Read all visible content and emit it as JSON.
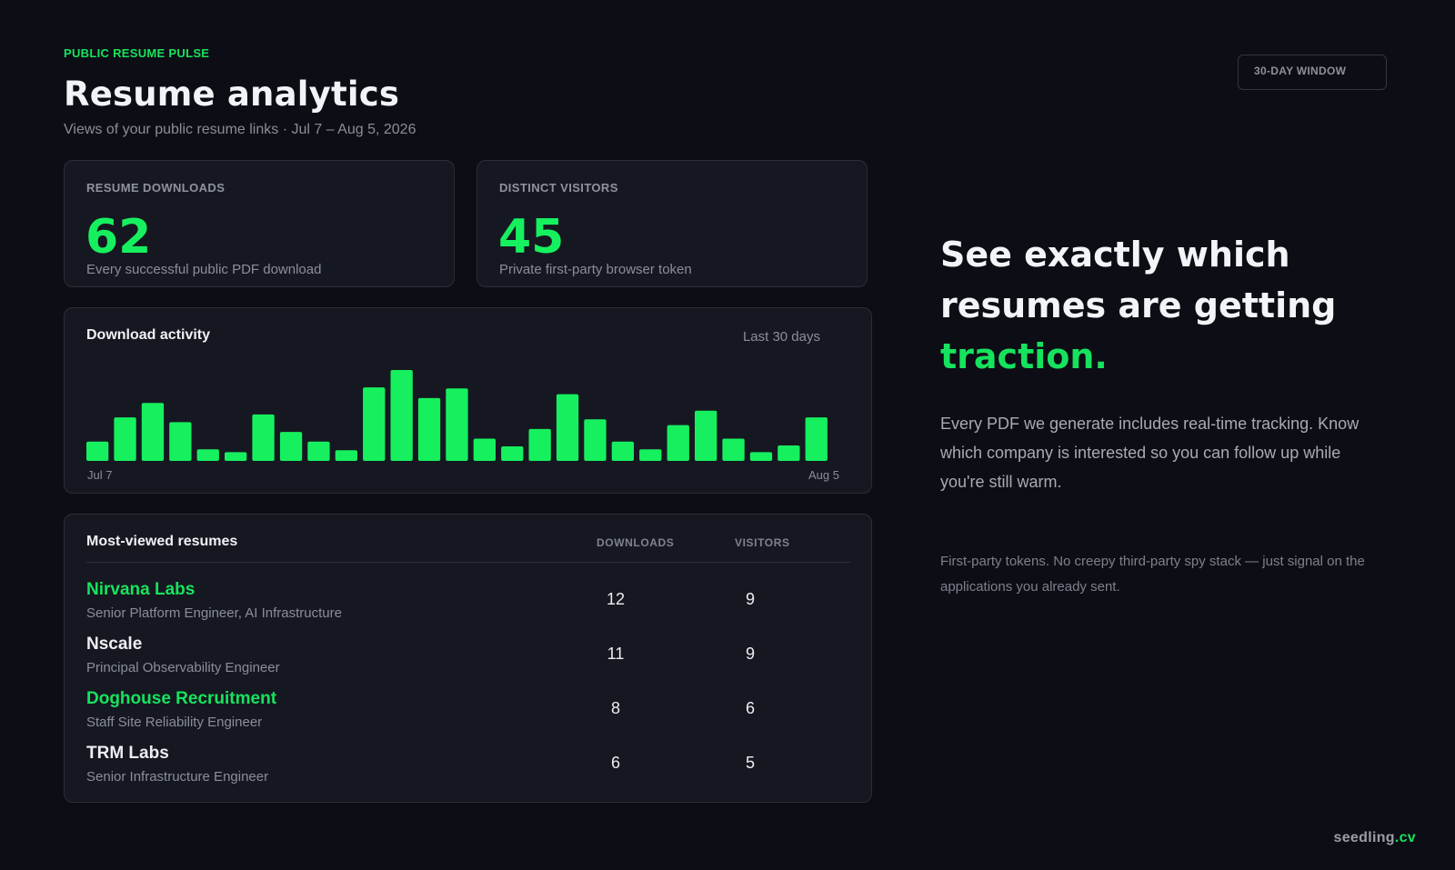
{
  "header": {
    "eyebrow": "PUBLIC RESUME PULSE",
    "title": "Resume analytics",
    "subtitle": "Views of your public resume links · Jul 7 – Aug 5, 2026",
    "window_badge": "30-DAY WINDOW"
  },
  "stats": [
    {
      "label": "RESUME DOWNLOADS",
      "value": "62",
      "desc": "Every successful public PDF download"
    },
    {
      "label": "DISTINCT VISITORS",
      "value": "45",
      "desc": "Private first-party browser token"
    }
  ],
  "activity": {
    "title": "Download activity",
    "range": "Last 30 days",
    "start_label": "Jul 7",
    "end_label": "Aug 5"
  },
  "chart_data": {
    "type": "bar",
    "x_start": "Jul 7",
    "x_end": "Aug 5",
    "values": [
      2,
      4.5,
      6,
      4,
      1.2,
      0.9,
      4.8,
      3,
      2,
      1.1,
      7.6,
      9.4,
      6.5,
      7.5,
      2.3,
      1.5,
      3.3,
      6.9,
      4.3,
      2,
      1.2,
      3.7,
      5.2,
      2.3,
      0.9,
      1.6,
      4.5
    ],
    "color": "#16f05f",
    "grid": false
  },
  "table": {
    "title": "Most-viewed resumes",
    "col_downloads": "DOWNLOADS",
    "col_visitors": "VISITORS",
    "rows": [
      {
        "company": "Nirvana Labs",
        "role": "Senior Platform Engineer, AI Infrastructure",
        "downloads": "12",
        "visitors": "9",
        "accent": true
      },
      {
        "company": "Nscale",
        "role": "Principal Observability Engineer",
        "downloads": "11",
        "visitors": "9",
        "accent": false
      },
      {
        "company": "Doghouse Recruitment",
        "role": "Staff Site Reliability Engineer",
        "downloads": "8",
        "visitors": "6",
        "accent": true
      },
      {
        "company": "TRM Labs",
        "role": "Senior Infrastructure Engineer",
        "downloads": "6",
        "visitors": "5",
        "accent": false
      }
    ]
  },
  "promo": {
    "headline_1": "See exactly which",
    "headline_2": "resumes are getting",
    "headline_accent": "traction.",
    "body": "Every PDF we generate includes real-time tracking. Know which company is interested so you can follow up while you're still warm.",
    "fine_print": "First-party tokens. No creepy third-party spy stack — just signal on the applications you already sent."
  },
  "brand": {
    "name": "seedling",
    "tld": ".cv"
  },
  "colors": {
    "accent": "#16e35d",
    "background": "#0d0e15",
    "card": "#161821"
  }
}
